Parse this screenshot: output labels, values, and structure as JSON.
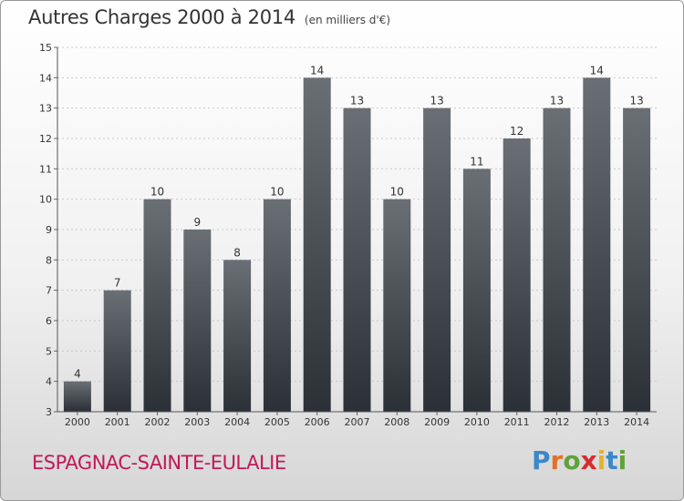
{
  "title": "Autres Charges 2000 à 2014",
  "unit": "(en milliers d'€)",
  "commune": "ESPAGNAC-SAINTE-EULALIE",
  "brand": {
    "text": "Proxiti",
    "letters": [
      "P",
      "r",
      "o",
      "x",
      "i",
      "t",
      "i"
    ],
    "colors": [
      "#3a88c8",
      "#e0712a",
      "#5ea33a",
      "#d92b2b",
      "#e3b32a",
      "#3a88c8",
      "#5ea33a"
    ]
  },
  "colors": {
    "bar_top": "#6a6f75",
    "bar_bottom": "#2b3036",
    "commune_text": "#c2185b"
  },
  "chart_data": {
    "type": "bar",
    "categories": [
      "2000",
      "2001",
      "2002",
      "2003",
      "2004",
      "2005",
      "2006",
      "2007",
      "2008",
      "2009",
      "2010",
      "2011",
      "2012",
      "2013",
      "2014"
    ],
    "values": [
      4,
      7,
      10,
      9,
      8,
      10,
      14,
      13,
      10,
      13,
      11,
      12,
      13,
      14,
      13
    ],
    "ylim": [
      3,
      15
    ],
    "yticks": [
      3,
      4,
      5,
      6,
      7,
      8,
      9,
      10,
      11,
      12,
      13,
      14,
      15
    ],
    "grid": true,
    "data_labels": true
  }
}
